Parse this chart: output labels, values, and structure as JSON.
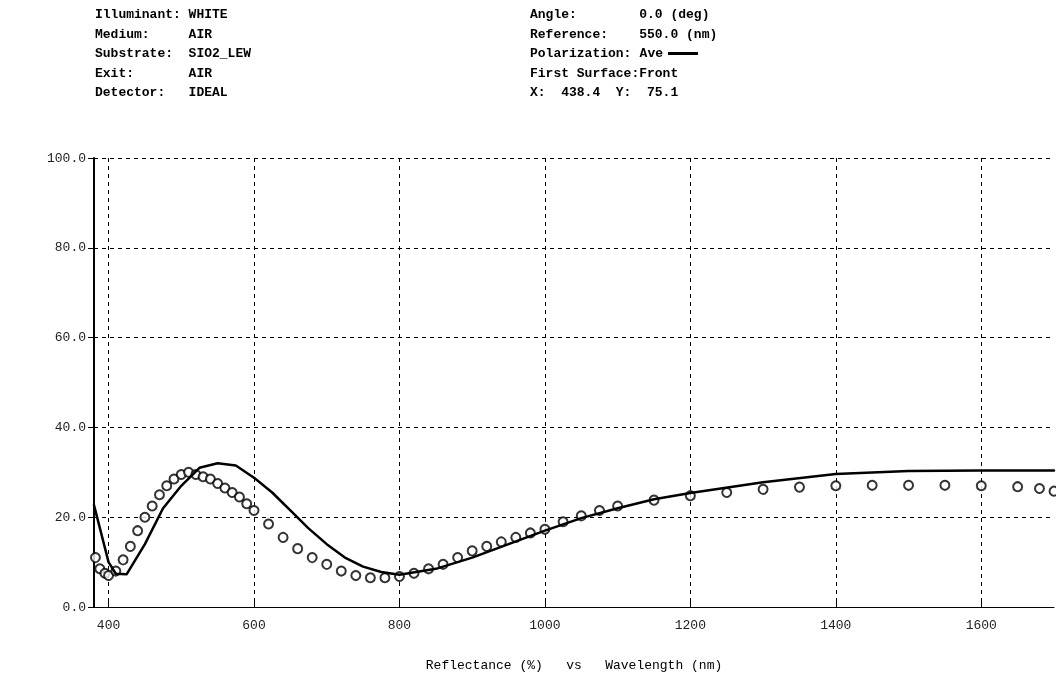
{
  "chart_data": {
    "type": "line",
    "xlabel": "Reflectance (%)   vs   Wavelength (nm)",
    "annotations": [
      "Illuminant: WHITE",
      "Medium:     AIR",
      "Substrate:  SIO2_LEW",
      "Exit:       AIR",
      "Detector:   IDEAL",
      "Angle:        0.0 (deg)",
      "Reference:    550.0 (nm)",
      "Polarization:",
      "First Surface:Front",
      "X:  438.4  Y:  75.1"
    ],
    "xlim": [
      380,
      1700
    ],
    "xticks": [
      400,
      600,
      800,
      1000,
      1200,
      1400,
      1600
    ],
    "ylim": [
      0,
      100
    ],
    "yticks": [
      {
        "value": 0,
        "label": "0.0"
      },
      {
        "value": 20,
        "label": "20.0"
      },
      {
        "value": 40,
        "label": "40.0"
      },
      {
        "value": 60,
        "label": "60.0"
      },
      {
        "value": 80,
        "label": "80.0"
      },
      {
        "value": 100,
        "label": "100.0"
      }
    ],
    "grid": true,
    "legend": "top right",
    "line_style": "solid",
    "series": [
      {
        "name": "Ave",
        "color": "#000000",
        "marker": "none",
        "x": [
          380,
          400,
          410,
          425,
          450,
          475,
          500,
          525,
          550,
          575,
          600,
          625,
          650,
          675,
          700,
          725,
          750,
          775,
          800,
          850,
          900,
          950,
          1000,
          1050,
          1100,
          1150,
          1200,
          1300,
          1400,
          1500,
          1600,
          1700
        ],
        "values": [
          22.7,
          10,
          7.4,
          7.3,
          14,
          22,
          27,
          31,
          32,
          31.5,
          28.8,
          25.5,
          21.5,
          17.5,
          14,
          11,
          9,
          7.8,
          7.2,
          8.5,
          11,
          14,
          17,
          19.8,
          22,
          24,
          25.4,
          27.8,
          29.6,
          30.3,
          30.4,
          30.4
        ]
      },
      {
        "type": "scatter",
        "color": "#000000",
        "marker": "circle",
        "x": [
          382,
          388,
          395,
          400,
          410,
          420,
          430,
          440,
          450,
          460,
          470,
          480,
          490,
          500,
          510,
          520,
          530,
          540,
          550,
          560,
          570,
          580,
          590,
          600,
          620,
          640,
          660,
          680,
          700,
          720,
          740,
          760,
          780,
          800,
          820,
          840,
          860,
          880,
          900,
          920,
          940,
          960,
          980,
          1000,
          1025,
          1050,
          1075,
          1100,
          1150,
          1200,
          1250,
          1300,
          1350,
          1400,
          1450,
          1500,
          1550,
          1600,
          1650,
          1680,
          1700
        ],
        "values": [
          11,
          8.5,
          7.5,
          7,
          8,
          10.5,
          13.5,
          17,
          20,
          22.5,
          25,
          27,
          28.5,
          29.5,
          30,
          29.5,
          29,
          28.5,
          27.5,
          26.5,
          25.5,
          24.5,
          23,
          21.5,
          18.5,
          15.5,
          13,
          11,
          9.5,
          8,
          7,
          6.5,
          6.5,
          6.8,
          7.5,
          8.5,
          9.5,
          11,
          12.5,
          13.5,
          14.5,
          15.5,
          16.5,
          17.3,
          19,
          20.3,
          21.5,
          22.5,
          23.8,
          24.8,
          25.5,
          26.2,
          26.7,
          27,
          27.1,
          27.1,
          27.1,
          27,
          26.8,
          26.4,
          25.8
        ]
      }
    ]
  }
}
